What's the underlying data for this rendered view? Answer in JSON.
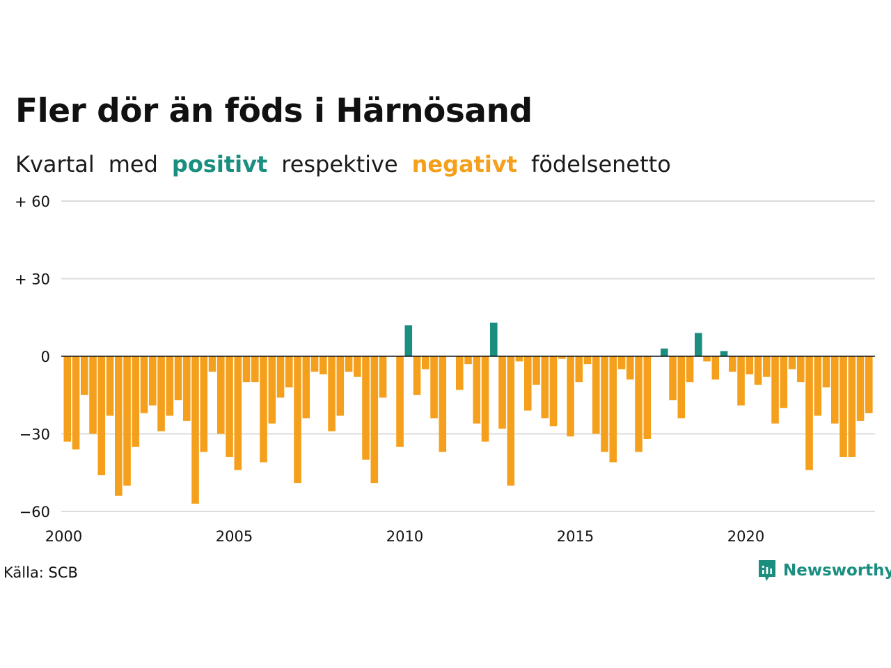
{
  "title": "Fler dör än föds i Härnösand",
  "subtitle": {
    "parts": [
      "Kvartal",
      "med",
      "positivt",
      "respektive",
      "negativt",
      "födelsenetto"
    ]
  },
  "colors": {
    "positive": "#1a8f80",
    "negative": "#f5a01c",
    "grid": "#dcdcdc",
    "zero_line": "#111111",
    "text": "#111111"
  },
  "source": "Källa: SCB",
  "brand": {
    "name": "Newsworthy",
    "icon": "newsworthy-logo-icon"
  },
  "chart_data": {
    "type": "bar",
    "x_start_year": 2000,
    "periods_per_year": 4,
    "ylim": [
      -60,
      60
    ],
    "y_ticks": [
      {
        "value": 60,
        "label": "+ 60"
      },
      {
        "value": 30,
        "label": "+ 30"
      },
      {
        "value": 0,
        "label": "0"
      },
      {
        "value": -30,
        "label": "−30"
      },
      {
        "value": -60,
        "label": "−60"
      }
    ],
    "x_ticks": [
      "2000",
      "2005",
      "2010",
      "2015",
      "2020"
    ],
    "values": [
      -33,
      -36,
      -15,
      -30,
      -46,
      -23,
      -54,
      -50,
      -35,
      -22,
      -19,
      -29,
      -23,
      -17,
      -25,
      -57,
      -37,
      -6,
      -30,
      -39,
      -44,
      -10,
      -10,
      -41,
      -26,
      -16,
      -12,
      -49,
      -24,
      -6,
      -7,
      -29,
      -23,
      -6,
      -8,
      -40,
      -49,
      -16,
      0,
      -35,
      12,
      -15,
      -5,
      -24,
      -37,
      0,
      -13,
      -3,
      -26,
      -33,
      13,
      -28,
      -50,
      -2,
      -21,
      -11,
      -24,
      -27,
      -1,
      -31,
      -10,
      -3,
      -30,
      -37,
      -41,
      -5,
      -9,
      -37,
      -32,
      0,
      3,
      -17,
      -24,
      -10,
      9,
      -2,
      -9,
      2,
      -6,
      -19,
      -7,
      -11,
      -8,
      -26,
      -20,
      -5,
      -10,
      -44,
      -23,
      -12,
      -26,
      -39,
      -39,
      -25,
      -22
    ]
  }
}
